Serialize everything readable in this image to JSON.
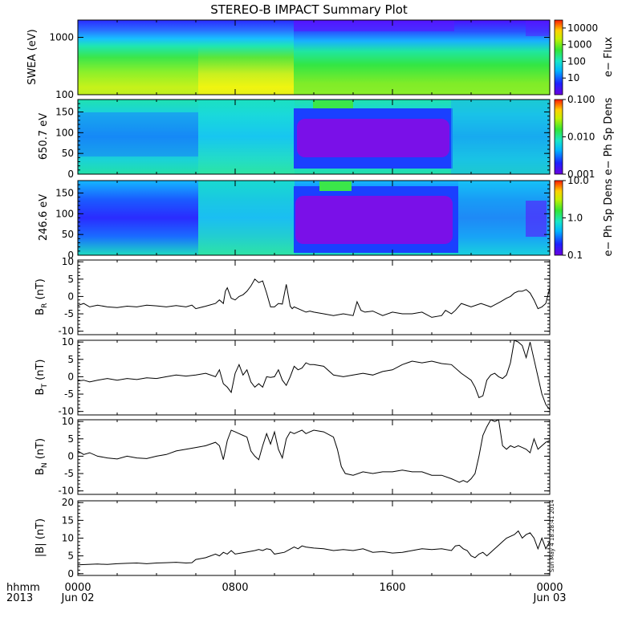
{
  "title": "STEREO-B IMPACT Summary Plot",
  "footer": {
    "time_label": "hhmm",
    "year_label": "2013",
    "x_ticks": [
      "0000",
      "0800",
      "1600",
      "0000"
    ],
    "x_subticks": [
      "Jun 02",
      "",
      "",
      "Jun 03"
    ]
  },
  "timestamp": "Sun May  4 18:28:41 2014",
  "colors": {
    "line": "#000000",
    "gap_blue": "#3550ff",
    "purple": "#7a10e8"
  },
  "chart_data": [
    {
      "type": "heatmap",
      "id": "swea",
      "ylabel": "SWEA (eV)",
      "yscale": "log",
      "ylim": [
        100,
        2000
      ],
      "yticks": [
        "100",
        "1000"
      ],
      "colorbar_label": "e− Flux",
      "colorbar_scale": "log",
      "colorbar_range": [
        1,
        30000
      ],
      "colorbar_ticks": [
        "10",
        "100",
        "1000",
        "10000"
      ]
    },
    {
      "type": "heatmap",
      "id": "pad650",
      "ylabel": "650.7 eV",
      "ylim": [
        0,
        180
      ],
      "yticks": [
        "0",
        "50",
        "100",
        "150"
      ],
      "colorbar_label": "e− Ph Sp Dens",
      "colorbar_scale": "log",
      "colorbar_range": [
        0.001,
        0.1
      ],
      "colorbar_ticks": [
        "0.001",
        "0.010",
        "0.100"
      ]
    },
    {
      "type": "heatmap",
      "id": "pad246",
      "ylabel": "246.6 eV",
      "ylim": [
        0,
        180
      ],
      "yticks": [
        "0",
        "50",
        "100",
        "150"
      ],
      "colorbar_label": "e− Ph Sp Dens",
      "colorbar_scale": "log",
      "colorbar_range": [
        0.1,
        10
      ],
      "colorbar_ticks": [
        "0.1",
        "1.0",
        "10.0"
      ]
    },
    {
      "type": "line",
      "id": "br",
      "ylabel": "B",
      "ysub": "R",
      "yunit": " (nT)",
      "ylim": [
        -11,
        10.5
      ],
      "yticks": [
        "-10",
        "-5",
        "0",
        "5",
        "10"
      ],
      "x": [
        0,
        0.3,
        0.6,
        1,
        1.5,
        2,
        2.5,
        3,
        3.5,
        4,
        4.5,
        5,
        5.5,
        5.8,
        6,
        6.5,
        7,
        7.2,
        7.4,
        7.5,
        7.6,
        7.7,
        7.8,
        8,
        8.2,
        8.4,
        8.6,
        8.8,
        9,
        9.2,
        9.4,
        9.6,
        9.8,
        10,
        10.2,
        10.4,
        10.6,
        10.8,
        10.9,
        11,
        11.2,
        11.4,
        11.6,
        11.8,
        12,
        12.5,
        13,
        13.5,
        14,
        14.2,
        14.4,
        14.6,
        15,
        15.5,
        16,
        16.5,
        17,
        17.5,
        18,
        18.5,
        18.7,
        19,
        19.2,
        19.5,
        20,
        20.5,
        21,
        21.5,
        21.8,
        22,
        22.2,
        22.4,
        22.6,
        22.8,
        23,
        23.2,
        23.4,
        23.6,
        23.8,
        24
      ],
      "y": [
        -2.6,
        -2,
        -3,
        -2.5,
        -3,
        -3.2,
        -2.8,
        -3,
        -2.5,
        -2.7,
        -3,
        -2.6,
        -3,
        -2.5,
        -3.5,
        -2.8,
        -2,
        -1,
        -2,
        1.5,
        2.5,
        1,
        -0.5,
        -1,
        0,
        0.5,
        1.5,
        3,
        5,
        4,
        4.5,
        1,
        -3,
        -3,
        -2,
        -2.2,
        3.5,
        -2.8,
        -3.5,
        -3,
        -3.5,
        -4,
        -4.5,
        -4.2,
        -4.5,
        -5,
        -5.5,
        -5,
        -5.5,
        -1.5,
        -4,
        -4.5,
        -4.2,
        -5.5,
        -4.5,
        -5,
        -5,
        -4.5,
        -6,
        -5.5,
        -4,
        -5,
        -4,
        -2,
        -3,
        -2,
        -3,
        -1.5,
        -0.5,
        0,
        1,
        1.5,
        1.5,
        2,
        1,
        -1,
        -3.5,
        -3,
        -2,
        2.5
      ]
    },
    {
      "type": "line",
      "id": "bt",
      "ylabel": "B",
      "ysub": "T",
      "yunit": " (nT)",
      "ylim": [
        -11,
        10.5
      ],
      "yticks": [
        "-10",
        "-5",
        "0",
        "5",
        "10"
      ],
      "x": [
        0,
        0.3,
        0.6,
        1,
        1.5,
        2,
        2.5,
        3,
        3.5,
        4,
        4.5,
        5,
        5.5,
        6,
        6.5,
        7,
        7.2,
        7.4,
        7.6,
        7.8,
        8,
        8.2,
        8.4,
        8.6,
        8.8,
        9,
        9.2,
        9.4,
        9.6,
        9.8,
        10,
        10.2,
        10.4,
        10.6,
        10.8,
        11,
        11.2,
        11.4,
        11.6,
        11.8,
        12,
        12.5,
        13,
        13.5,
        14,
        14.5,
        15,
        15.5,
        16,
        16.5,
        17,
        17.5,
        18,
        18.5,
        19,
        19.5,
        20,
        20.2,
        20.4,
        20.6,
        20.8,
        21,
        21.2,
        21.4,
        21.6,
        21.8,
        22,
        22.2,
        22.4,
        22.6,
        22.8,
        23,
        23.2,
        23.4,
        23.6,
        23.8,
        24
      ],
      "y": [
        -1.2,
        -1,
        -1.5,
        -1,
        -0.5,
        -1,
        -0.5,
        -0.8,
        -0.3,
        -0.5,
        0,
        0.5,
        0.2,
        0.5,
        1,
        0,
        2,
        -2,
        -3,
        -4.5,
        1,
        3.5,
        0.5,
        2,
        -1.5,
        -3,
        -2,
        -3,
        0,
        -0.2,
        0,
        2,
        -1,
        -2.5,
        0,
        3,
        2,
        2.5,
        4,
        3.5,
        3.5,
        3,
        0.5,
        0,
        0.5,
        1,
        0.5,
        1.5,
        2,
        3.5,
        4.5,
        4,
        4.5,
        3.8,
        3.5,
        1,
        -1,
        -3,
        -6,
        -5.5,
        -1,
        0.5,
        1,
        0,
        -0.5,
        0.5,
        4,
        10.5,
        10,
        9,
        5.5,
        10,
        5,
        0,
        -5,
        -8,
        -9.5
      ]
    },
    {
      "type": "line",
      "id": "bn",
      "ylabel": "B",
      "ysub": "N",
      "yunit": " (nT)",
      "ylim": [
        -11,
        10.5
      ],
      "yticks": [
        "-10",
        "-5",
        "0",
        "5",
        "10"
      ],
      "x": [
        0,
        0.3,
        0.6,
        1,
        1.5,
        2,
        2.5,
        3,
        3.5,
        4,
        4.5,
        5,
        5.5,
        6,
        6.5,
        7,
        7.2,
        7.4,
        7.6,
        7.8,
        8,
        8.2,
        8.4,
        8.6,
        8.8,
        9,
        9.2,
        9.4,
        9.6,
        9.8,
        10,
        10.2,
        10.4,
        10.6,
        10.8,
        11,
        11.2,
        11.4,
        11.6,
        11.8,
        12,
        12.5,
        13,
        13.2,
        13.4,
        13.6,
        14,
        14.5,
        15,
        15.5,
        16,
        16.5,
        17,
        17.5,
        18,
        18.5,
        19,
        19.2,
        19.4,
        19.6,
        19.8,
        20,
        20.2,
        20.4,
        20.6,
        20.8,
        21,
        21.2,
        21.4,
        21.6,
        21.8,
        22,
        22.2,
        22.4,
        22.6,
        22.8,
        23,
        23.2,
        23.4,
        23.6,
        23.8,
        24
      ],
      "y": [
        1.5,
        0.5,
        1,
        0,
        -0.5,
        -0.8,
        0,
        -0.5,
        -0.7,
        0,
        0.5,
        1.5,
        2,
        2.5,
        3,
        4,
        3,
        -1,
        4.5,
        7.5,
        7,
        6.5,
        6,
        5.5,
        1.5,
        0,
        -1,
        3,
        6.5,
        3.5,
        7,
        2,
        -0.5,
        5,
        7,
        6.5,
        7,
        7.5,
        6.5,
        7,
        7.5,
        7,
        5.5,
        2,
        -3,
        -5,
        -5.5,
        -4.5,
        -5,
        -4.5,
        -4.5,
        -4,
        -4.5,
        -4.5,
        -5.5,
        -5.5,
        -6.5,
        -7,
        -7.5,
        -7,
        -7.5,
        -6.5,
        -5,
        0,
        6,
        8.5,
        10.5,
        10,
        10.5,
        3,
        2,
        3,
        2.5,
        3,
        2.5,
        2,
        1,
        5,
        2,
        3,
        4,
        4.5
      ]
    },
    {
      "type": "line",
      "id": "bmag",
      "ylabel": "|B|",
      "ysub": "",
      "yunit": " (nT)",
      "ylim": [
        -0.5,
        20.5
      ],
      "yticks": [
        "0",
        "5",
        "10",
        "15",
        "20"
      ],
      "x": [
        0,
        0.5,
        1,
        1.5,
        2,
        2.5,
        3,
        3.5,
        4,
        4.5,
        5,
        5.5,
        5.8,
        6,
        6.5,
        7,
        7.2,
        7.4,
        7.6,
        7.8,
        8,
        8.5,
        9,
        9.2,
        9.4,
        9.6,
        9.8,
        10,
        10.5,
        11,
        11.2,
        11.4,
        11.6,
        12,
        12.5,
        13,
        13.5,
        14,
        14.5,
        15,
        15.5,
        16,
        16.5,
        17,
        17.5,
        18,
        18.5,
        19,
        19.2,
        19.4,
        19.6,
        19.8,
        20,
        20.2,
        20.4,
        20.6,
        20.8,
        21,
        21.2,
        21.4,
        21.6,
        21.8,
        22,
        22.2,
        22.4,
        22.6,
        22.8,
        23,
        23.2,
        23.4,
        23.6,
        23.8,
        24
      ],
      "y": [
        2.5,
        2.6,
        2.7,
        2.6,
        2.8,
        2.9,
        3,
        2.8,
        3,
        3.1,
        3.2,
        3,
        3.1,
        4,
        4.5,
        5.5,
        5,
        6,
        5.5,
        6.5,
        5.5,
        6,
        6.5,
        6.8,
        6.5,
        7,
        6.8,
        5.5,
        6,
        7.5,
        7,
        7.8,
        7.5,
        7.2,
        7,
        6.5,
        6.8,
        6.5,
        7,
        6,
        6.2,
        5.8,
        6,
        6.5,
        7,
        6.8,
        7,
        6.5,
        7.8,
        8,
        7,
        6.5,
        5,
        4.5,
        5.5,
        6,
        5,
        6,
        7,
        8,
        9,
        10,
        10.5,
        11,
        12,
        10,
        11,
        11.5,
        10,
        7,
        10,
        7,
        9
      ]
    }
  ]
}
